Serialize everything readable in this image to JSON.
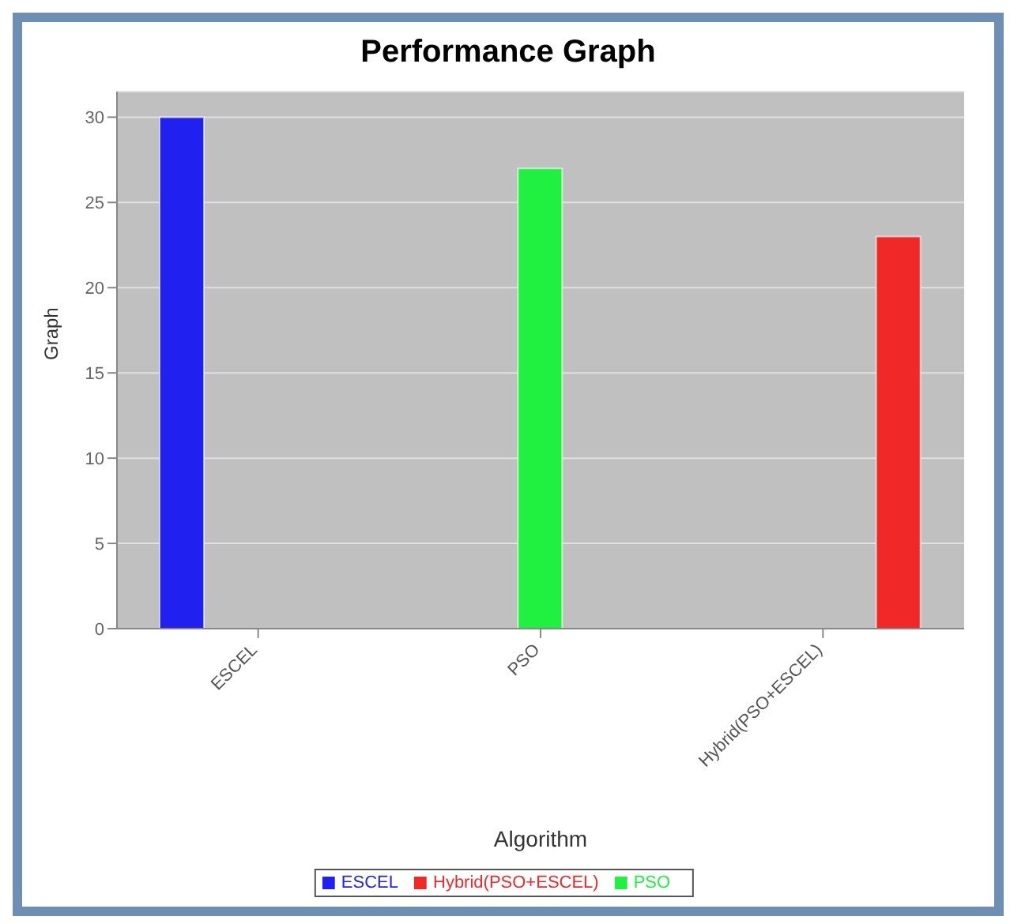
{
  "chart_data": {
    "type": "bar",
    "title": "Performance Graph",
    "xlabel": "Algorithm",
    "ylabel": "Graph",
    "categories": [
      "ESCEL",
      "PSO",
      "Hybrid(PSO+ESCEL)"
    ],
    "series": [
      {
        "name": "ESCEL",
        "color": "#2020f0",
        "values": [
          30,
          null,
          null
        ]
      },
      {
        "name": "PSO",
        "color": "#20f040",
        "values": [
          null,
          27,
          null
        ]
      },
      {
        "name": "Hybrid(PSO+ESCEL)",
        "color": "#f02828",
        "values": [
          null,
          null,
          23
        ]
      }
    ],
    "ylim": [
      0,
      31.5
    ],
    "yticks": [
      0,
      5,
      10,
      15,
      20,
      25,
      30
    ],
    "grid": "y",
    "legend": "bottom"
  }
}
